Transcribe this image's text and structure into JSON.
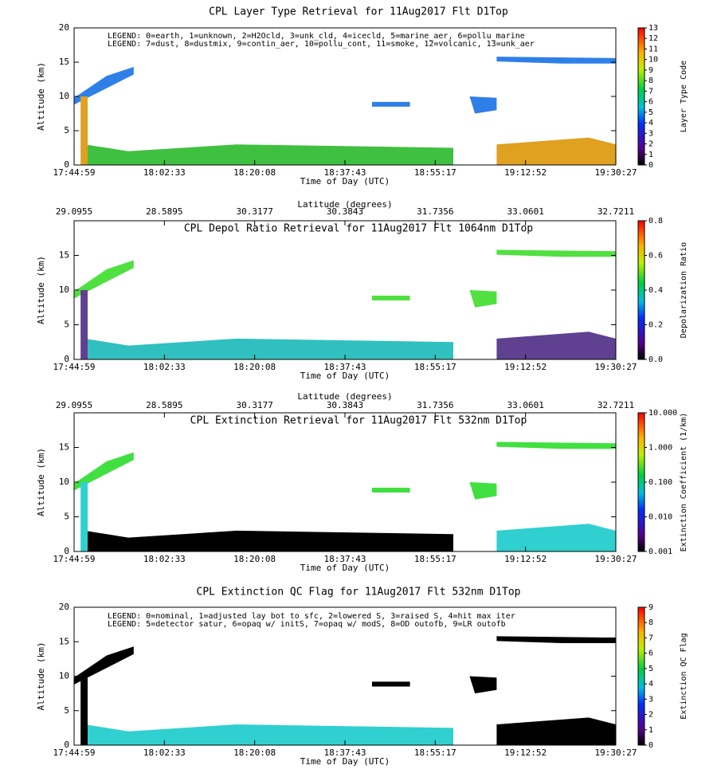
{
  "chart_data": [
    {
      "type": "heatmap",
      "title": "CPL Layer Type Retrieval for 11Aug2017 Flt D1Top",
      "legend": [
        "LEGEND: 0=earth, 1=unknown, 2=H2Ocld, 3=unk_cld, 4=icecld, 5=marine_aer, 6=pollu_marine",
        "LEGEND: 7=dust, 8=dustmix, 9=contin_aer, 10=pollu_cont, 11=smoke, 12=volcanic, 13=unk_aer"
      ],
      "categories": [
        "17:44:59",
        "18:02:33",
        "18:20:08",
        "18:37:43",
        "18:55:17",
        "19:12:52",
        "19:30:27"
      ],
      "xlabel": "Time of Day (UTC)",
      "ylabel": "Altitude (km)",
      "ylim": [
        0,
        20
      ],
      "yticks": [
        0,
        5,
        10,
        15,
        20
      ],
      "colorbar": {
        "label": "Layer Type Code",
        "scale": "linear",
        "lim": [
          0,
          13
        ],
        "ticks": [
          0,
          1,
          2,
          3,
          4,
          5,
          6,
          7,
          8,
          9,
          10,
          11,
          12,
          13
        ]
      }
    },
    {
      "type": "heatmap",
      "title": "CPL Depol Ratio Retrieval for 11Aug2017 Flt 1064nm D1Top",
      "top_axis": {
        "label": "Latitude (degrees)",
        "categories": [
          "29.0955",
          "28.5895",
          "30.3177",
          "30.3843",
          "31.7356",
          "33.0601",
          "32.7211"
        ]
      },
      "categories": [
        "17:44:59",
        "18:02:33",
        "18:20:08",
        "18:37:43",
        "18:55:17",
        "19:12:52",
        "19:30:27"
      ],
      "xlabel": "Time of Day (UTC)",
      "ylabel": "Altitude (km)",
      "ylim": [
        0,
        20
      ],
      "yticks": [
        0,
        5,
        10,
        15
      ],
      "colorbar": {
        "label": "Depolarization Ratio",
        "scale": "linear",
        "lim": [
          0,
          0.8
        ],
        "ticks": [
          {
            "value": 0,
            "label": "0.0"
          },
          0.2,
          0.4,
          0.6,
          0.8
        ]
      }
    },
    {
      "type": "heatmap",
      "title": "CPL Extinction Retrieval for 11Aug2017 Flt 532nm D1Top",
      "top_axis": {
        "label": "Latitude (degrees)",
        "categories": [
          "29.0955",
          "28.5895",
          "30.3177",
          "30.3843",
          "31.7356",
          "33.0601",
          "32.7211"
        ]
      },
      "categories": [
        "17:44:59",
        "18:02:33",
        "18:20:08",
        "18:37:43",
        "18:55:17",
        "19:12:52",
        "19:30:27"
      ],
      "xlabel": "Time of Day (UTC)",
      "ylabel": "Altitude (km)",
      "ylim": [
        0,
        20
      ],
      "yticks": [
        0,
        5,
        10,
        15
      ],
      "colorbar": {
        "label": "Extinction Coefficient (1/km)",
        "scale": "log",
        "lim": [
          0.001,
          10
        ],
        "ticks": [
          0.001,
          {
            "value": 0.01,
            "label": "0.010"
          },
          {
            "value": 0.1,
            "label": "0.100"
          },
          {
            "value": 1,
            "label": "1.000"
          },
          {
            "value": 10,
            "label": "10.000"
          }
        ]
      }
    },
    {
      "type": "heatmap",
      "title": "CPL Extinction QC Flag for 11Aug2017 Flt 532nm D1Top",
      "legend": [
        "LEGEND: 0=nominal, 1=adjusted lay bot to sfc, 2=lowered S, 3=raised S, 4=hit max iter",
        "LEGEND: 5=detector satur, 6=opaq w/ initS, 7=opaq w/ modS, 8=OD outofb, 9=LR outofb"
      ],
      "categories": [
        "17:44:59",
        "18:02:33",
        "18:20:08",
        "18:37:43",
        "18:55:17",
        "19:12:52",
        "19:30:27"
      ],
      "xlabel": "Time of Day (UTC)",
      "ylabel": "Altitude (km)",
      "ylim": [
        0,
        20
      ],
      "yticks": [
        0,
        5,
        10,
        15,
        20
      ],
      "colorbar": {
        "label": "Extinction QC Flag",
        "scale": "linear",
        "lim": [
          0,
          9
        ],
        "ticks": [
          0,
          1,
          2,
          3,
          4,
          5,
          6,
          7,
          8,
          9
        ]
      }
    }
  ]
}
